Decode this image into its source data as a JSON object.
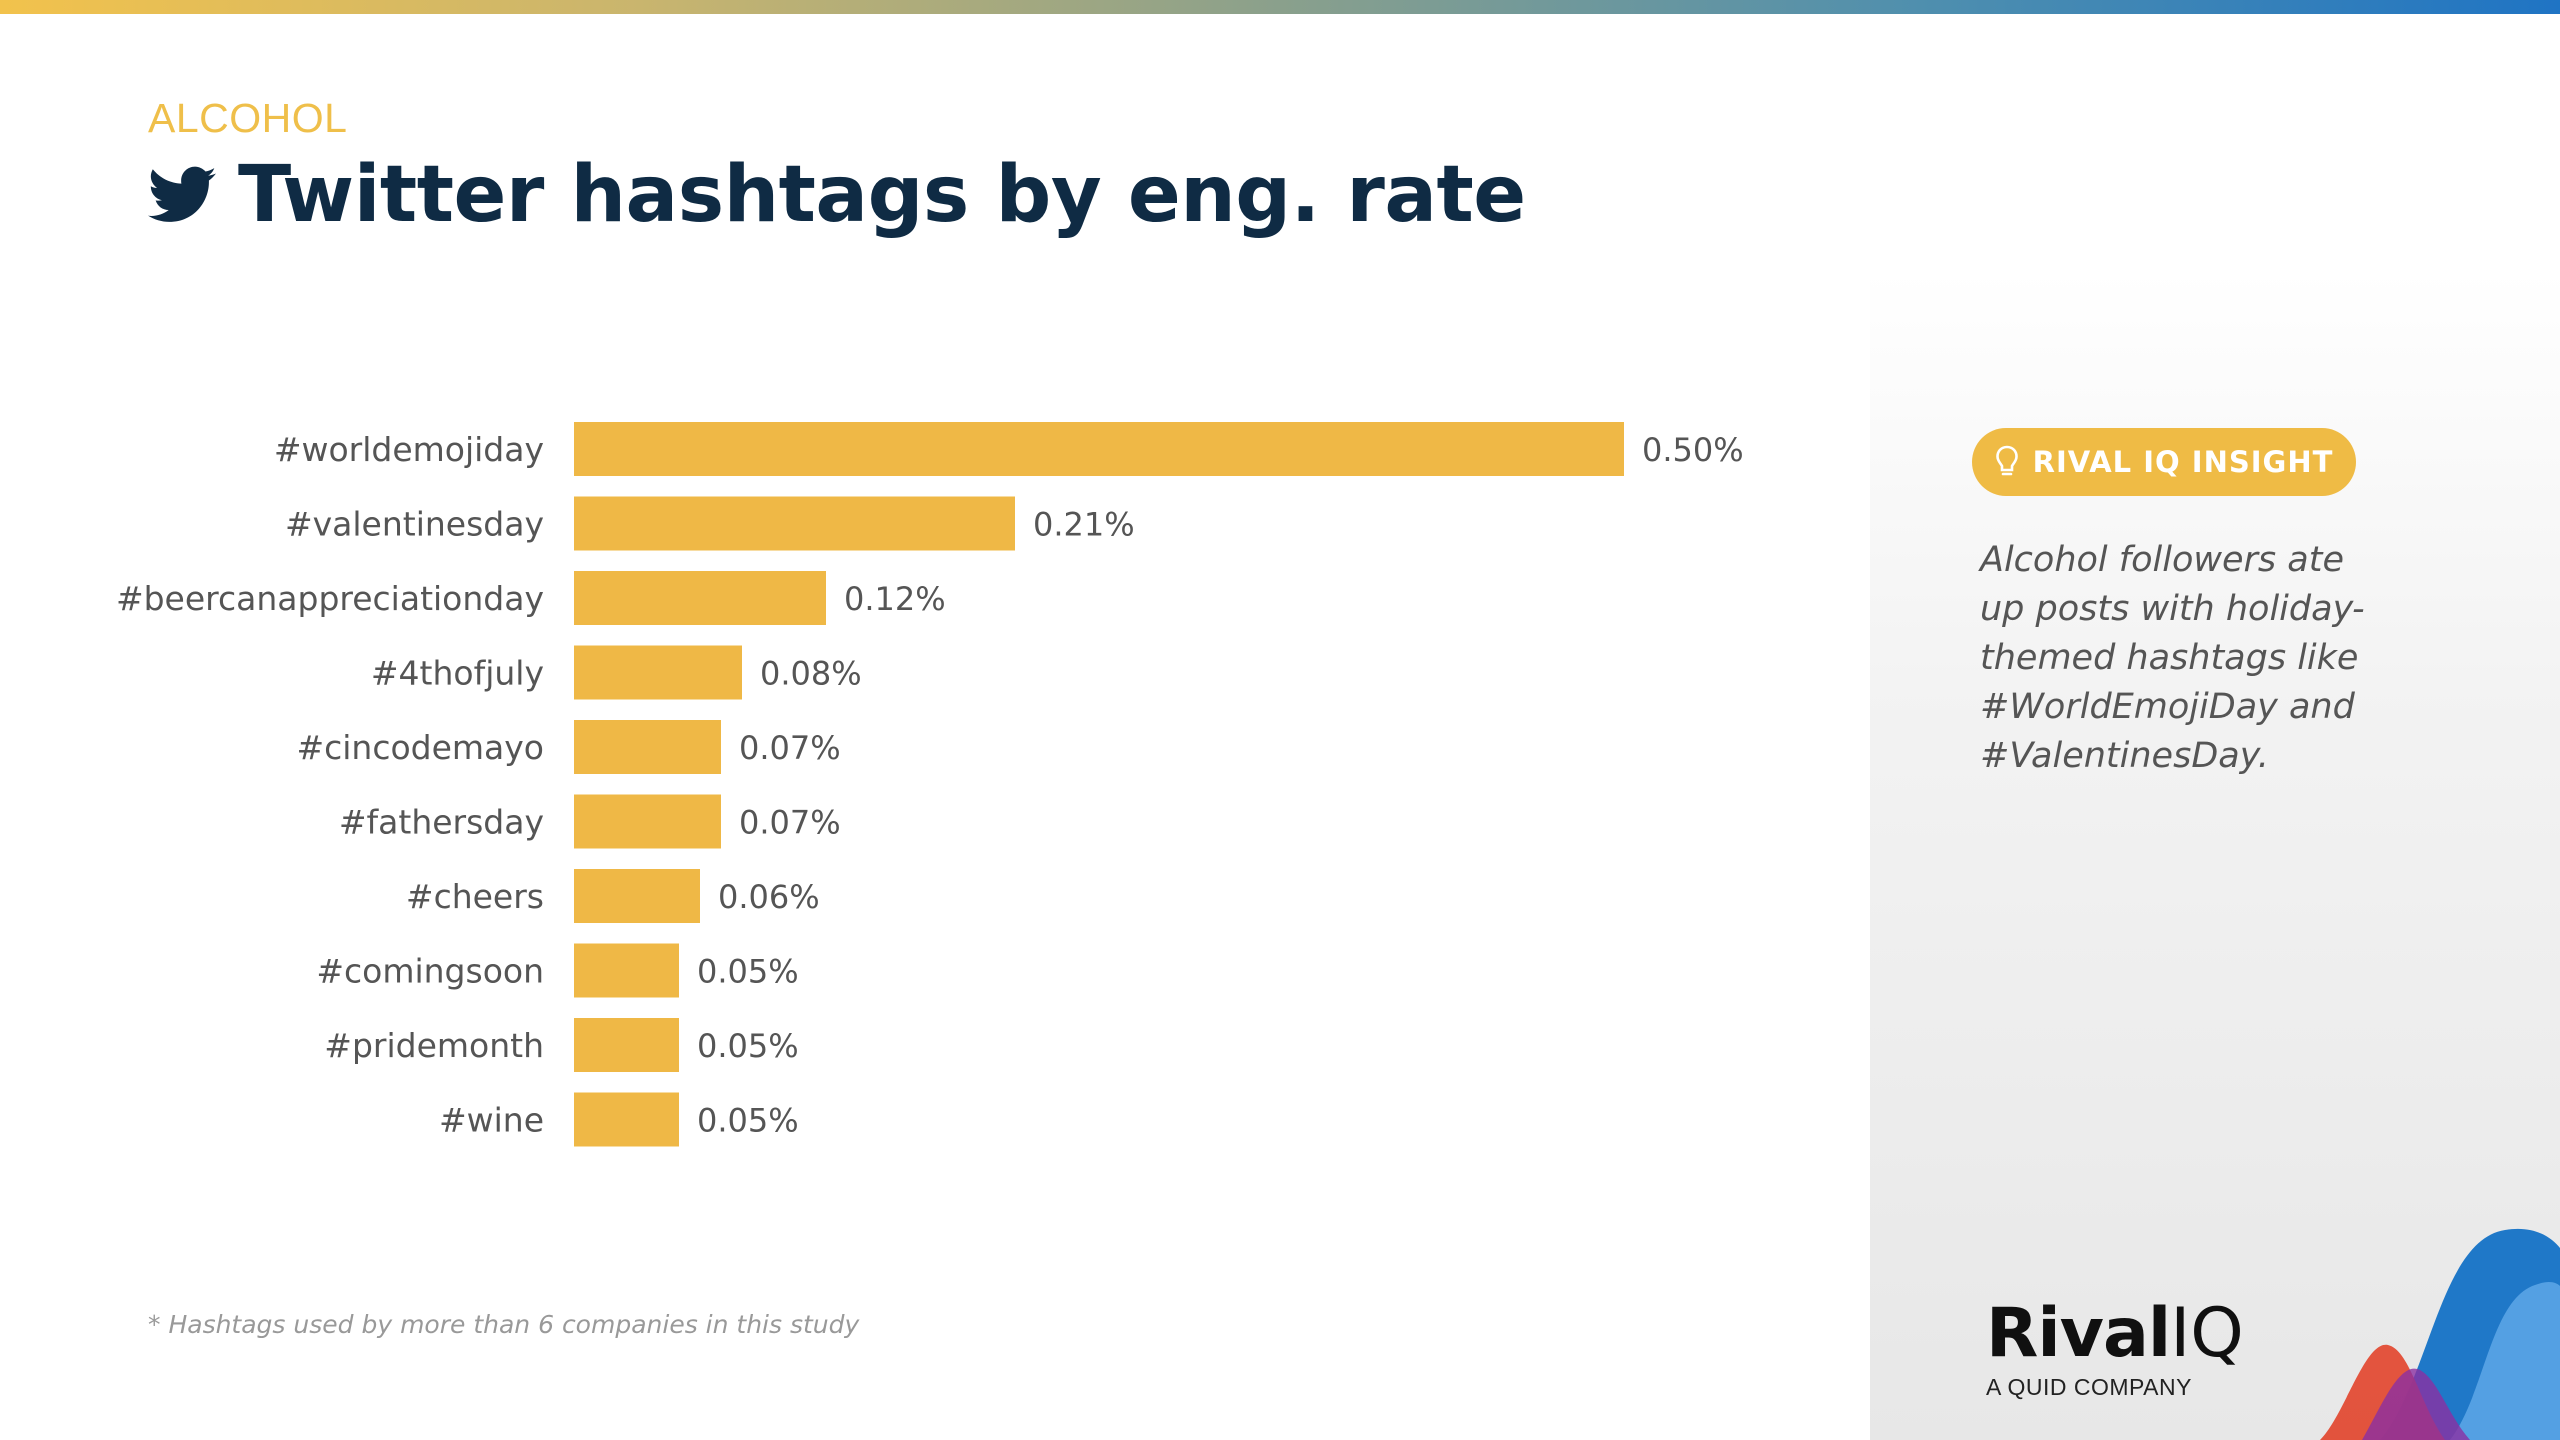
{
  "header": {
    "category": "ALCOHOL",
    "title": "Twitter hashtags by eng. rate",
    "icon": "twitter-bird-icon"
  },
  "chart_data": {
    "type": "bar",
    "orientation": "horizontal",
    "categories": [
      "#worldemojiday",
      "#valentinesday",
      "#beercanappreciationday",
      "#4thofjuly",
      "#cincodemayo",
      "#fathersday",
      "#cheers",
      "#comingsoon",
      "#pridemonth",
      "#wine"
    ],
    "values": [
      0.5,
      0.21,
      0.12,
      0.08,
      0.07,
      0.07,
      0.06,
      0.05,
      0.05,
      0.05
    ],
    "value_labels": [
      "0.50%",
      "0.21%",
      "0.12%",
      "0.08%",
      "0.07%",
      "0.07%",
      "0.06%",
      "0.05%",
      "0.05%",
      "0.05%"
    ],
    "unit": "%",
    "xlim": [
      0,
      0.5
    ],
    "grid": false,
    "color": "#efb846"
  },
  "insight": {
    "label": "RIVAL IQ INSIGHT",
    "icon": "lightbulb-icon",
    "text": "Alcohol followers ate up posts with holiday-themed hashtags like #WorldEmojiDay and #ValentinesDay."
  },
  "footnote": "* Hashtags used by more than 6 companies in this study",
  "logo": {
    "name": "Rival",
    "name_suffix": "IQ",
    "subtitle": "A QUID COMPANY"
  },
  "colors": {
    "accent": "#efb846",
    "title": "#0f2b44"
  }
}
